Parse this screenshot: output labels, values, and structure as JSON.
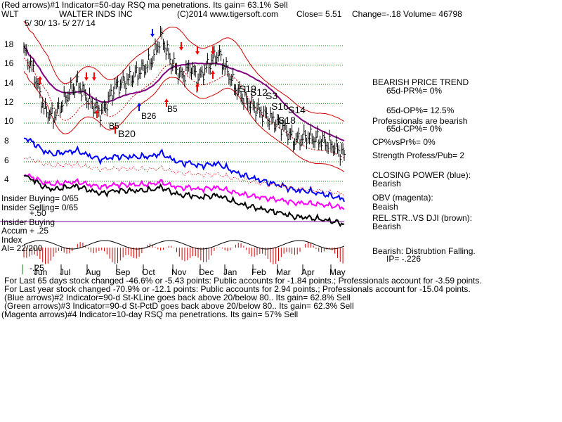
{
  "header": {
    "line1": "(Red arrows)#1 Indicator=50-day RSQ ma penetrations. Its gain= 63.1% Sell",
    "ticker": "WLT",
    "company": "WALTER INDS INC",
    "copyright": "(C)2014 www.tigersoft.com",
    "close": "Close=  5.51",
    "change": "Change=-.18 Volume= 46798",
    "date_range": "5/ 30/ 13- 5/ 27/ 14"
  },
  "price_axis": {
    "ticks": [
      "18",
      "16",
      "14",
      "12",
      "10",
      "8",
      "6",
      "4"
    ]
  },
  "month_labels": [
    "Jun",
    "Jul",
    "Aug",
    "Sep",
    "Oct",
    "Nov",
    "Dec",
    "Jan",
    "Feb",
    "Mar",
    "Apr",
    "May"
  ],
  "signals": {
    "b5a": "B5",
    "b20": "B20",
    "b26": "B26",
    "b5b": "B5",
    "s19": "S19",
    "s12": "S12",
    "s3": "S3",
    "s16": "S16",
    "s14": "S14",
    "s18": "S18"
  },
  "right_panel": {
    "trend_title": "BEARISH PRICE TREND",
    "pr": "65d-PR%= 0%",
    "op": "65d-OP%= 12.5%",
    "pros": "Professionals are bearish",
    "cp": "65d-CP%= 0%",
    "cpvspr": "CP%vsPr%=  0%",
    "strength": "Strength Profess/Pub= 2",
    "closing_title": "CLOSING POWER (blue):",
    "closing_val": "Bearish",
    "obv_title": "OBV (magenta):",
    "obv_val": "Beaish",
    "relstr_title": "REL.STR..VS DJI (brown):",
    "relstr_val": "Bearish",
    "ai_title": "Bearish: Distrubtion Falling.",
    "ip": "IP= -.226"
  },
  "left_labels": {
    "ins_buy": "Insider Buying= 0/65",
    "ins_sell": "Insider Selling= 0/65",
    "plus50": "+.50",
    "ins_buy2": "Insider Buying",
    "accum": "Accum  + .25",
    "index": "Index",
    "ai": "AI= 22/200",
    "minus25": "-.25"
  },
  "footer": {
    "line1": "For Last 65 days stock changed -46.6% or -5.43 points:  Public accounts for -1.84 points.;  Professionals account for -3.59 points.",
    "line2": "For Last year stock changed -70.9% or -12.1 points:  Public accounts for  2.94 points.;  Professionals account for -15.04 points.",
    "line3": "(Blue arrows)#2 Indicator=90-d St-KLine goes back above 20/below 80.. Its gain= 62.8% Sell",
    "line4": "(Green arrows)#3 Indicator=90-d St-PctD goes back above 20/below 80.. Its gain= 62.3% Sell",
    "line5": "(Magenta arrows)#4 Indicator=10-day RSQ ma penetrations. Its gain= 57% Sell"
  },
  "colors": {
    "price": "#000000",
    "bands": "#cc0000",
    "ma": "#800080",
    "closing_power": "#0000ff",
    "obv": "#ff00ff",
    "relstr": "#000000",
    "grid": "#008000",
    "hist": "#cc0000",
    "arrow_red": "#ff0000",
    "arrow_blue": "#0000ff"
  },
  "chart_data": {
    "type": "line",
    "title": "WALTER INDS INC",
    "x": [
      "Jun",
      "Jul",
      "Aug",
      "Sep",
      "Oct",
      "Nov",
      "Dec",
      "Jan",
      "Feb",
      "Mar",
      "Apr",
      "May"
    ],
    "ylim": [
      3,
      19
    ],
    "series": [
      {
        "name": "Close",
        "values": [
          17.5,
          11.2,
          12.8,
          14.0,
          16.0,
          17.5,
          15.0,
          13.0,
          11.2,
          9.0,
          8.0,
          5.51
        ]
      }
    ]
  }
}
